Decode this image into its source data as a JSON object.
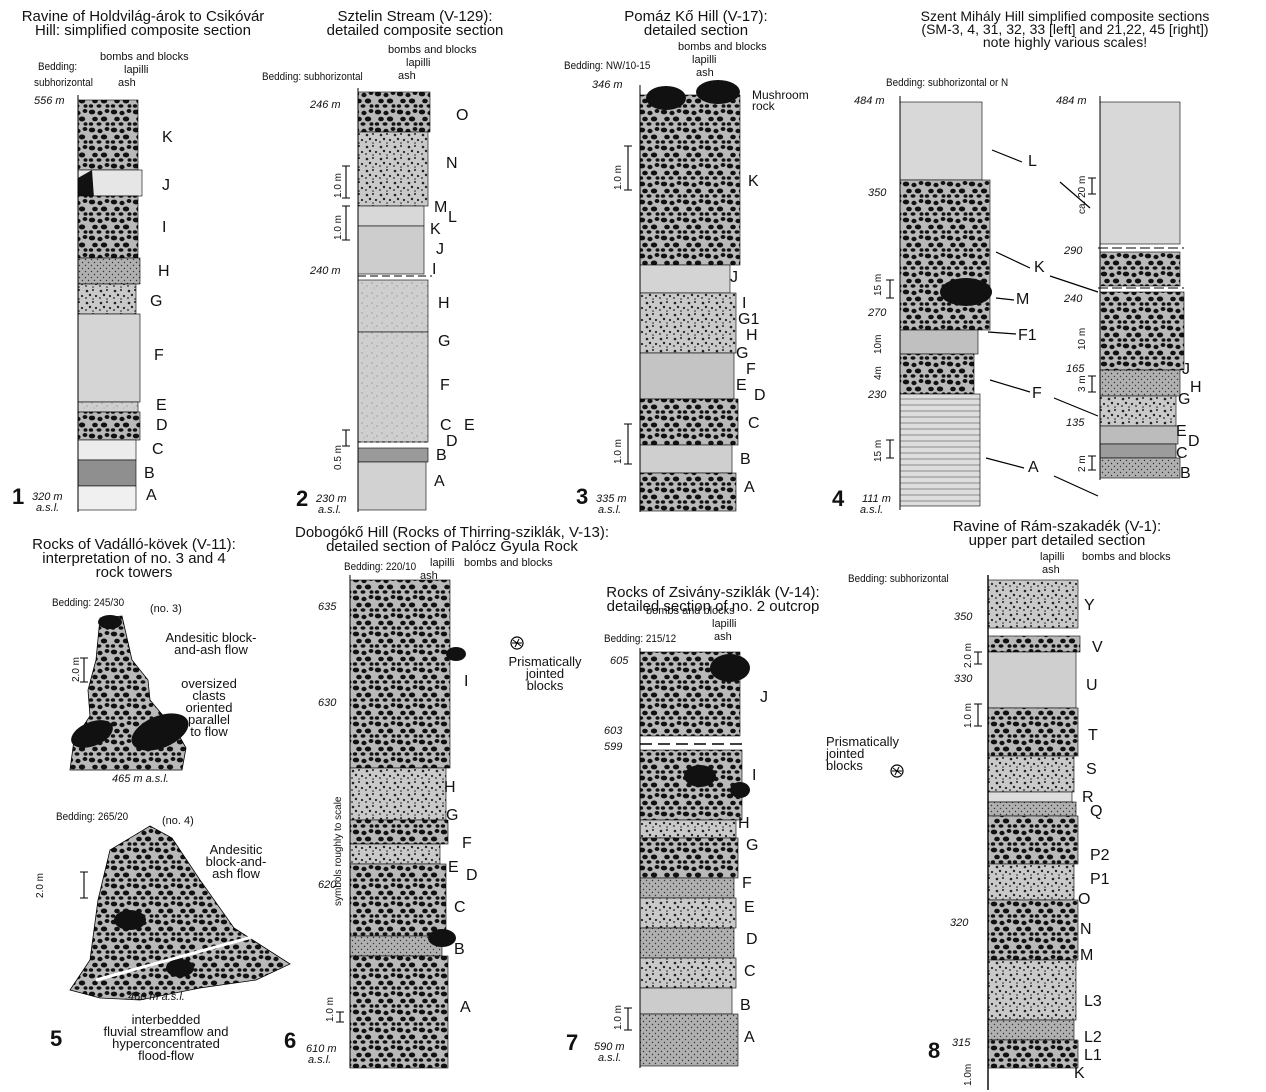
{
  "panels": [
    {
      "id": 1,
      "title": [
        "Ravine of Holdvilág-árok to Csikóvár",
        "Hill: simplified composite section"
      ],
      "bedding": [
        "Bedding:",
        "subhorizontal"
      ],
      "column_header": [
        "bombs and blocks",
        "lapilli",
        "ash"
      ],
      "elevations": [
        "556 m",
        "320 m"
      ],
      "asl": "a.s.l.",
      "layers": [
        "K",
        "J",
        "I",
        "H",
        "G",
        "F",
        "E",
        "D",
        "C",
        "B",
        "A"
      ]
    },
    {
      "id": 2,
      "title": [
        "Sztelin Stream (V-129):",
        "detailed composite section"
      ],
      "bedding": [
        "Bedding: subhorizontal"
      ],
      "column_header": [
        "bombs and blocks",
        "lapilli",
        "ash"
      ],
      "elevations": [
        "246 m",
        "240 m",
        "230 m"
      ],
      "asl": "a.s.l.",
      "scales": [
        "1.0 m",
        "1.0 m",
        "0.5 m"
      ],
      "layers": [
        "O",
        "N",
        "M",
        "L",
        "K",
        "J",
        "I",
        "H",
        "G",
        "F",
        "C",
        "E",
        "D",
        "B",
        "A"
      ]
    },
    {
      "id": 3,
      "title": [
        "Pomáz Kő Hill (V-17):",
        "detailed section"
      ],
      "bedding": [
        "Bedding: NW/10-15"
      ],
      "column_header": [
        "bombs and blocks",
        "lapilli",
        "ash"
      ],
      "elevations": [
        "346 m",
        "335 m"
      ],
      "asl": "a.s.l.",
      "scales": [
        "1.0 m",
        "1.0 m"
      ],
      "annotation": [
        "Mushroom",
        "rock"
      ],
      "layers": [
        "K",
        "J",
        "I",
        "G1",
        "H",
        "G",
        "F",
        "E",
        "D",
        "C",
        "B",
        "A"
      ]
    },
    {
      "id": 4,
      "title": [
        "Szent Mihály Hill simplified composite sections",
        "(SM-3, 4, 31, 32, 33 [left] and 21,22, 45 [right])",
        "note highly various scales!"
      ],
      "bedding": [
        "Bedding: subhorizontal or N"
      ],
      "elevations_left": [
        "484 m",
        "350",
        "270",
        "230",
        "111 m"
      ],
      "elevations_right": [
        "484 m",
        "290",
        "240",
        "165",
        "135"
      ],
      "asl": "a.s.l.",
      "scales_left": [
        "15 m",
        "10m",
        "4m",
        "15 m"
      ],
      "scales_right": [
        "ca. 20 m",
        "10 m",
        "3 m",
        "2 m"
      ],
      "layers": [
        "L",
        "K",
        "M",
        "F1",
        "F",
        "A",
        "J",
        "H",
        "G",
        "E",
        "D",
        "C",
        "B"
      ]
    },
    {
      "id": 5,
      "title": [
        "Rocks of Vadálló-kövek (V-11):",
        "interpretation of no. 3 and 4",
        "rock towers"
      ],
      "upper": {
        "bedding": "Bedding: 245/30",
        "tag": "(no. 3)",
        "scale": "2.0 m",
        "elevation": "465 m a.s.l.",
        "notes": [
          [
            "Andesitic block-",
            "and-ash flow"
          ],
          [
            "oversized",
            "clasts",
            "oriented",
            "parallel",
            "to flow"
          ]
        ]
      },
      "lower": {
        "bedding": "Bedding: 265/20",
        "tag": "(no. 4)",
        "scale": "2.0 m",
        "elevation": "460 m a.s.l.",
        "notes": [
          [
            "Andesitic",
            "block-and-",
            "ash flow"
          ],
          [
            "interbedded",
            "fluvial streamflow and",
            "hyperconcentrated",
            "flood-flow"
          ]
        ]
      }
    },
    {
      "id": 6,
      "title": [
        "Dobogókő Hill (Rocks of Thirring-sziklák, V-13):",
        "detailed section of Palócz Gyula Rock"
      ],
      "bedding": [
        "Bedding: 220/10"
      ],
      "column_header": [
        "bombs and blocks",
        "lapilli",
        "ash"
      ],
      "elevations": [
        "635",
        "630",
        "620",
        "610 m"
      ],
      "asl": "a.s.l.",
      "scale": "1.0 m",
      "vertical_note": "symbols roughly to scale",
      "annotation": [
        "Prismatically",
        "jointed",
        "blocks"
      ],
      "layers": [
        "I",
        "H",
        "G",
        "F",
        "E",
        "D",
        "C",
        "B",
        "A"
      ]
    },
    {
      "id": 7,
      "title": [
        "Rocks of Zsivány-sziklák (V-14):",
        "detailed section of  no. 2 outcrop"
      ],
      "bedding": [
        "Bedding: 215/12"
      ],
      "column_header": [
        "bombs and blocks",
        "lapilli",
        "ash"
      ],
      "elevations": [
        "605",
        "603",
        "599",
        "590 m"
      ],
      "asl": "a.s.l.",
      "scale": "1.0 m",
      "annotation": [
        "Prismatically",
        "jointed",
        "blocks"
      ],
      "layers": [
        "J",
        "I",
        "H",
        "G",
        "F",
        "E",
        "D",
        "C",
        "B",
        "A"
      ]
    },
    {
      "id": 8,
      "title": [
        "Ravine of Rám-szakadék (V-1):",
        "upper part detailed section"
      ],
      "bedding": [
        "Bedding: subhorizontal"
      ],
      "column_header": [
        "bombs and blocks",
        "lapilli",
        "ash"
      ],
      "elevations": [
        "350",
        "330",
        "320",
        "315"
      ],
      "scales": [
        "2.0 m",
        "1.0 m",
        "1.0m"
      ],
      "layers": [
        "Y",
        "V",
        "U",
        "T",
        "S",
        "R",
        "Q",
        "P2",
        "P1",
        "O",
        "N",
        "M",
        "L3",
        "L2",
        "L1",
        "K"
      ]
    }
  ]
}
